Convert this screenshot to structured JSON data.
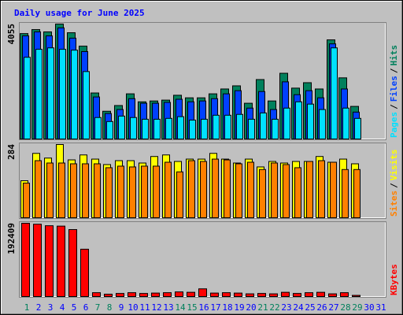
{
  "title": "Daily usage for June 2025",
  "legend_separator": "/",
  "chart_data": [
    {
      "type": "bar",
      "series": [
        {
          "name": "Hits",
          "color": "#00805c",
          "values": [
            3720,
            3860,
            3780,
            4055,
            3750,
            3280,
            1640,
            1000,
            1200,
            1610,
            1330,
            1360,
            1390,
            1560,
            1470,
            1470,
            1610,
            1780,
            1890,
            1280,
            2110,
            1360,
            2330,
            1810,
            2000,
            1780,
            3500,
            2170,
            1170,
            0,
            0
          ]
        },
        {
          "name": "Files",
          "color": "#0040ff",
          "values": [
            3640,
            3780,
            3640,
            3920,
            3560,
            3090,
            1500,
            920,
            1060,
            1440,
            1280,
            1280,
            1310,
            1420,
            1330,
            1360,
            1440,
            1610,
            1720,
            1110,
            1690,
            1060,
            2030,
            1580,
            1720,
            1470,
            3360,
            1780,
            970,
            0,
            0
          ]
        },
        {
          "name": "Pages",
          "color": "#00e0ff",
          "values": [
            2890,
            3170,
            3220,
            3170,
            3140,
            2390,
            780,
            640,
            830,
            780,
            720,
            720,
            750,
            810,
            690,
            720,
            860,
            860,
            890,
            720,
            940,
            720,
            1110,
            1330,
            1250,
            1060,
            3220,
            1110,
            750,
            0,
            0
          ]
        }
      ],
      "ylim": [
        0,
        4055
      ],
      "yticks": [
        4055
      ]
    },
    {
      "type": "bar",
      "series": [
        {
          "name": "Visits",
          "color": "#ffff00",
          "values": [
            145,
            250,
            232,
            284,
            225,
            244,
            228,
            207,
            222,
            222,
            213,
            238,
            244,
            219,
            228,
            228,
            250,
            228,
            213,
            228,
            198,
            219,
            213,
            219,
            219,
            238,
            216,
            228,
            210,
            0,
            0
          ]
        },
        {
          "name": "Sites",
          "color": "#ff8000",
          "values": [
            136,
            222,
            213,
            213,
            210,
            210,
            210,
            195,
            201,
            198,
            201,
            201,
            216,
            179,
            222,
            219,
            228,
            225,
            210,
            216,
            188,
            213,
            207,
            195,
            219,
            222,
            216,
            188,
            188,
            0,
            0
          ]
        }
      ],
      "ylim": [
        0,
        284
      ],
      "yticks": [
        284
      ]
    },
    {
      "type": "bar",
      "categories": [
        "1",
        "2",
        "3",
        "4",
        "5",
        "6",
        "7",
        "8",
        "9",
        "10",
        "11",
        "12",
        "13",
        "14",
        "15",
        "16",
        "17",
        "18",
        "19",
        "20",
        "21",
        "22",
        "23",
        "24",
        "25",
        "26",
        "27",
        "28",
        "29",
        "30",
        "31"
      ],
      "category_colors": [
        "#00805c",
        "#0000ff",
        "#0000ff",
        "#0000ff",
        "#0000ff",
        "#0000ff",
        "#00805c",
        "#00805c",
        "#0000ff",
        "#0000ff",
        "#0000ff",
        "#0000ff",
        "#0000ff",
        "#00805c",
        "#00805c",
        "#0000ff",
        "#0000ff",
        "#0000ff",
        "#0000ff",
        "#0000ff",
        "#00805c",
        "#00805c",
        "#0000ff",
        "#0000ff",
        "#0000ff",
        "#0000ff",
        "#0000ff",
        "#00805c",
        "#00805c",
        "#0000ff",
        "#0000ff"
      ],
      "series": [
        {
          "name": "KBytes",
          "color": "#ff0000",
          "values": [
            192409,
            190000,
            186000,
            185000,
            176000,
            125000,
            12000,
            8000,
            10000,
            12000,
            10000,
            11000,
            12000,
            14000,
            13000,
            22000,
            11000,
            12000,
            11000,
            9000,
            10000,
            9000,
            13000,
            10000,
            12000,
            13000,
            9000,
            12000,
            5000,
            0,
            0
          ]
        }
      ],
      "ylim": [
        0,
        192409
      ],
      "yticks": [
        192409
      ]
    }
  ]
}
